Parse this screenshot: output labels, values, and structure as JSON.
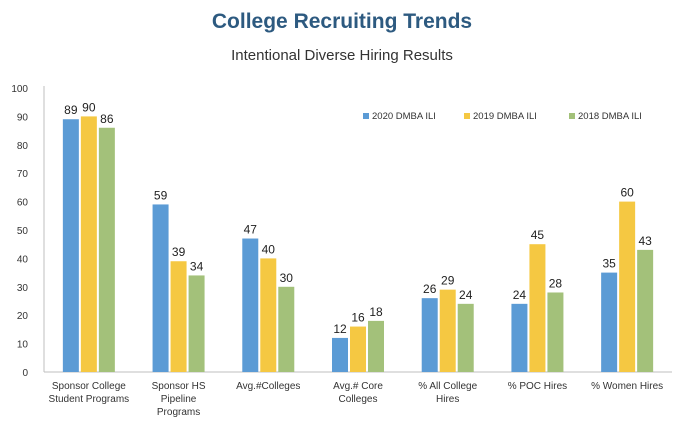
{
  "chart_data": {
    "type": "bar",
    "title": "College Recruiting Trends",
    "subtitle": "Intentional Diverse Hiring Results",
    "xlabel": "",
    "ylabel": "",
    "ylim": [
      0,
      100
    ],
    "yticks": [
      0,
      10,
      20,
      30,
      40,
      50,
      60,
      70,
      80,
      90,
      100
    ],
    "categories": [
      [
        "Sponsor College",
        "Student Programs"
      ],
      [
        "Sponsor HS",
        "Pipeline",
        "Programs"
      ],
      [
        "Avg.#Colleges"
      ],
      [
        "Avg.# Core",
        "Colleges"
      ],
      [
        "% All College",
        "Hires"
      ],
      [
        "% POC Hires"
      ],
      [
        "% Women Hires"
      ]
    ],
    "series": [
      {
        "name": "2020 DMBA ILI",
        "color": "#5b9bd5",
        "values": [
          89,
          59,
          47,
          12,
          26,
          24,
          35
        ]
      },
      {
        "name": "2019 DMBA ILI",
        "color": "#f5c842",
        "values": [
          90,
          39,
          40,
          16,
          29,
          45,
          60
        ]
      },
      {
        "name": "2018 DMBA ILI",
        "color": "#a3c17a",
        "values": [
          86,
          34,
          30,
          18,
          24,
          28,
          43
        ]
      }
    ],
    "grid": false,
    "legend_position": "top-right"
  }
}
